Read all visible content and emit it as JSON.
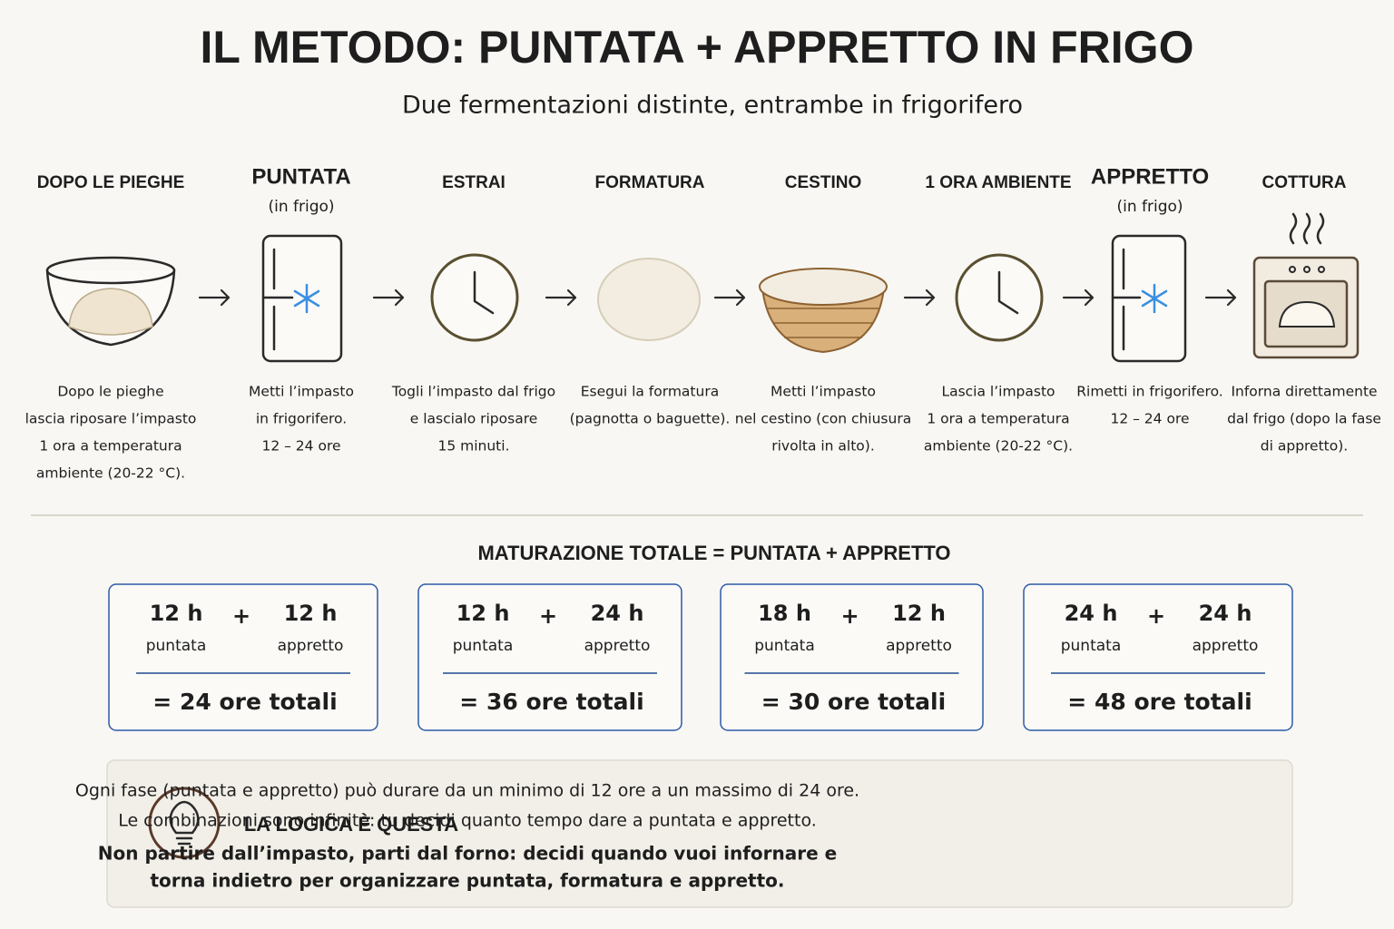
{
  "header": {
    "title": "IL METODO: PUNTATA + APPRETTO IN FRIGO",
    "subtitle": "Due fermentazioni distinte, entrambe in frigorifero"
  },
  "steps": [
    {
      "label": "DOPO LE PIEGHE",
      "description": [
        "Dopo le pieghe",
        "lascia riposare l’impasto",
        "1 ora a temperatura",
        "ambiente (20-22 °C)."
      ]
    },
    {
      "label": "PUNTATA",
      "sublabel": "(in frigo)",
      "description": [
        "Metti l’impasto",
        "in frigorifero.",
        "12 – 24 ore"
      ]
    },
    {
      "label": "ESTRAI",
      "description": [
        "Togli l’impasto dal frigo",
        "e lascialo riposare",
        "15 minuti."
      ]
    },
    {
      "label": "FORMATURA",
      "description": [
        "Esegui la formatura",
        "(pagnotta o baguette)."
      ]
    },
    {
      "label": "CESTINO",
      "description": [
        "Metti l’impasto",
        "nel cestino (con chiusura",
        "rivolta in alto)."
      ]
    },
    {
      "label": "1 ORA AMBIENTE",
      "description": [
        "Lascia l’impasto",
        "1 ora a temperatura",
        "ambiente (20-22 °C)."
      ]
    },
    {
      "label": "APPRETTO",
      "sublabel": "(in frigo)",
      "description": [
        "Rimetti in frigorifero.",
        "12 – 24 ore"
      ]
    },
    {
      "label": "COTTURA",
      "description": [
        "Inforna direttamente",
        "dal frigo (dopo la fase",
        "di appretto)."
      ]
    }
  ],
  "formula": {
    "title": "MATURAZIONE TOTALE = PUNTATA + APPRETTO",
    "plus": "+",
    "combinations": [
      {
        "puntata": "12 h",
        "puntata_label": "puntata",
        "appretto": "12 h",
        "appretto_label": "appretto",
        "total": "= 24 ore totali"
      },
      {
        "puntata": "12 h",
        "puntata_label": "puntata",
        "appretto": "24 h",
        "appretto_label": "appretto",
        "total": "= 36 ore totali"
      },
      {
        "puntata": "18 h",
        "puntata_label": "puntata",
        "appretto": "12 h",
        "appretto_label": "appretto",
        "total": "= 30 ore totali"
      },
      {
        "puntata": "24 h",
        "puntata_label": "puntata",
        "appretto": "24 h",
        "appretto_label": "appretto",
        "total": "= 48 ore totali"
      }
    ]
  },
  "tip": {
    "title": "LA LOGICA È QUESTA",
    "lines": [
      "Ogni fase (puntata e appretto) può durare da un minimo di 12 ore a un massimo di 24 ore.",
      "Le combinazioni sono infinite: tu decidi quanto tempo dare a puntata e appretto."
    ],
    "highlight": [
      "Non partire dall’impasto, parti dal forno: decidi quando vuoi infornare e",
      "torna indietro per organizzare puntata, formatura e appretto."
    ]
  }
}
